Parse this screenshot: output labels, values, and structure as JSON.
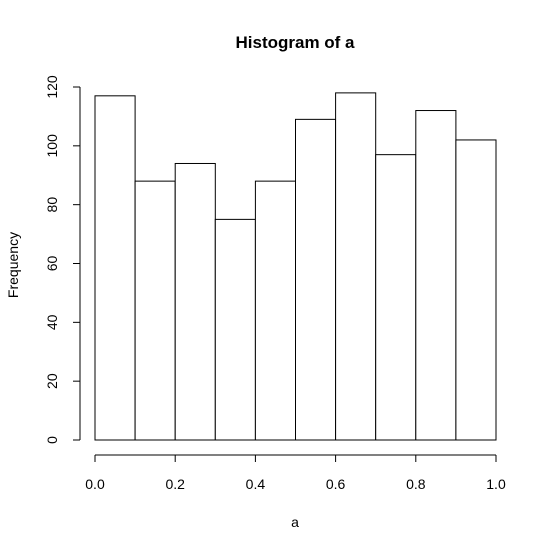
{
  "chart_data": {
    "type": "bar",
    "title": "Histogram of a",
    "xlabel": "a",
    "ylabel": "Frequency",
    "bins": [
      {
        "start": 0.0,
        "end": 0.1,
        "count": 117
      },
      {
        "start": 0.1,
        "end": 0.2,
        "count": 88
      },
      {
        "start": 0.2,
        "end": 0.3,
        "count": 94
      },
      {
        "start": 0.3,
        "end": 0.4,
        "count": 75
      },
      {
        "start": 0.4,
        "end": 0.5,
        "count": 88
      },
      {
        "start": 0.5,
        "end": 0.6,
        "count": 109
      },
      {
        "start": 0.6,
        "end": 0.7,
        "count": 118
      },
      {
        "start": 0.7,
        "end": 0.8,
        "count": 97
      },
      {
        "start": 0.8,
        "end": 0.9,
        "count": 112
      },
      {
        "start": 0.9,
        "end": 1.0,
        "count": 102
      }
    ],
    "xlim": [
      0,
      1
    ],
    "ylim": [
      0,
      120
    ],
    "xticks": [
      0.0,
      0.2,
      0.4,
      0.6,
      0.8,
      1.0
    ],
    "xtick_labels": [
      "0.0",
      "0.2",
      "0.4",
      "0.6",
      "0.8",
      "1.0"
    ],
    "yticks": [
      0,
      20,
      40,
      60,
      80,
      100,
      120
    ],
    "ytick_labels": [
      "0",
      "20",
      "40",
      "60",
      "80",
      "100",
      "120"
    ],
    "grid": false,
    "bar_fill": "#ffffff",
    "bar_stroke": "#000000"
  }
}
